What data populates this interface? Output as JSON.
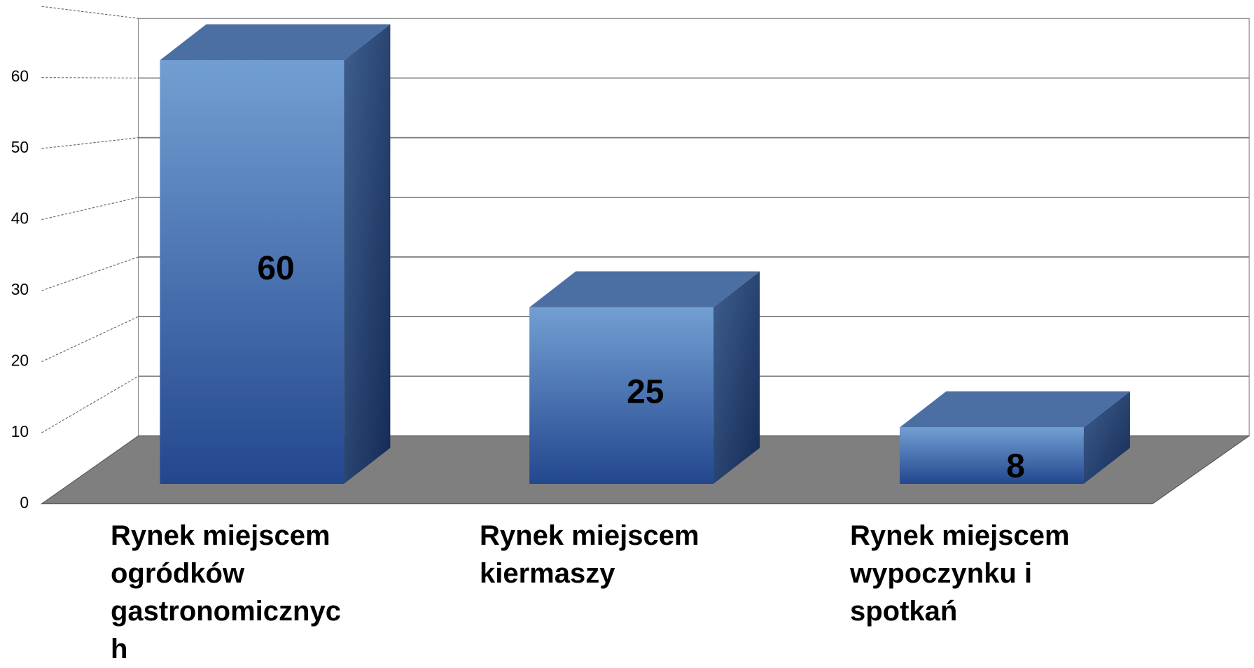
{
  "chart_data": {
    "type": "bar3d",
    "categories": [
      "Rynek miejscem ogródków gastronomicznych",
      "Rynek miejscem kiermaszy",
      "Rynek miejscem wypoczynku i spotkań"
    ],
    "values": [
      60,
      25,
      8
    ],
    "ylim": [
      0,
      70
    ],
    "yticks": [
      0,
      10,
      20,
      30,
      40,
      50,
      60
    ],
    "grid": true,
    "color": "#4a74b4"
  }
}
